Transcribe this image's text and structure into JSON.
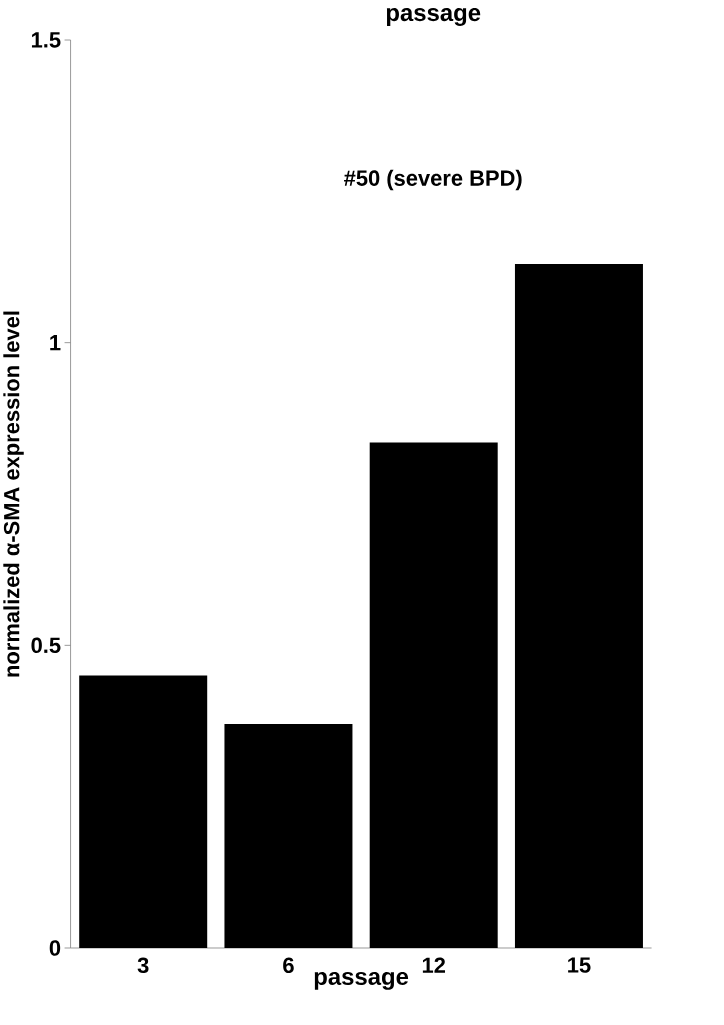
{
  "chart_data": {
    "type": "bar",
    "title": "passage",
    "xlabel": "passage",
    "ylabel": "normalized α-SMA expression level",
    "annotations": [
      "#50 (severe BPD)"
    ],
    "categories": [
      "3",
      "6",
      "12",
      "15"
    ],
    "values": [
      0.45,
      0.37,
      0.835,
      1.13
    ],
    "color": "#000000",
    "ylim": [
      0,
      1.5
    ],
    "yticks": [
      0,
      0.5,
      1,
      1.5
    ]
  }
}
